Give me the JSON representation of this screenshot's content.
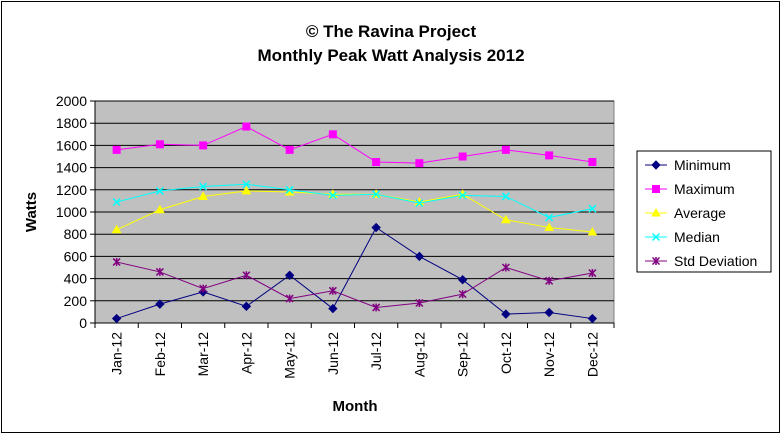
{
  "chart_data": {
    "type": "line",
    "title": "© The Ravina Project",
    "subtitle": "Monthly Peak Watt Analysis 2012",
    "xlabel": "Month",
    "ylabel": "Watts",
    "ylim": [
      0,
      2000
    ],
    "yticks": [
      0,
      200,
      400,
      600,
      800,
      1000,
      1200,
      1400,
      1600,
      1800,
      2000
    ],
    "grid": "horizontal",
    "plot_background": "#c0c0c0",
    "legend_position": "right",
    "categories": [
      "Jan-12",
      "Feb-12",
      "Mar-12",
      "Apr-12",
      "May-12",
      "Jun-12",
      "Jul-12",
      "Aug-12",
      "Sep-12",
      "Oct-12",
      "Nov-12",
      "Dec-12"
    ],
    "series": [
      {
        "name": "Minimum",
        "color": "#000080",
        "marker": "diamond",
        "values": [
          40,
          170,
          280,
          150,
          430,
          130,
          860,
          600,
          390,
          80,
          95,
          40
        ]
      },
      {
        "name": "Maximum",
        "color": "#ff00ff",
        "marker": "square",
        "values": [
          1560,
          1610,
          1600,
          1770,
          1560,
          1700,
          1450,
          1440,
          1500,
          1560,
          1510,
          1450
        ]
      },
      {
        "name": "Average",
        "color": "#ffff00",
        "marker": "triangle",
        "values": [
          840,
          1020,
          1140,
          1190,
          1180,
          1160,
          1160,
          1090,
          1160,
          930,
          860,
          820
        ]
      },
      {
        "name": "Median",
        "color": "#00ffff",
        "marker": "x",
        "values": [
          1090,
          1190,
          1230,
          1250,
          1200,
          1150,
          1160,
          1080,
          1150,
          1140,
          950,
          1030
        ]
      },
      {
        "name": "Std Deviation",
        "color": "#800080",
        "marker": "star",
        "values": [
          550,
          460,
          310,
          430,
          220,
          290,
          140,
          180,
          260,
          500,
          380,
          450
        ]
      }
    ]
  }
}
